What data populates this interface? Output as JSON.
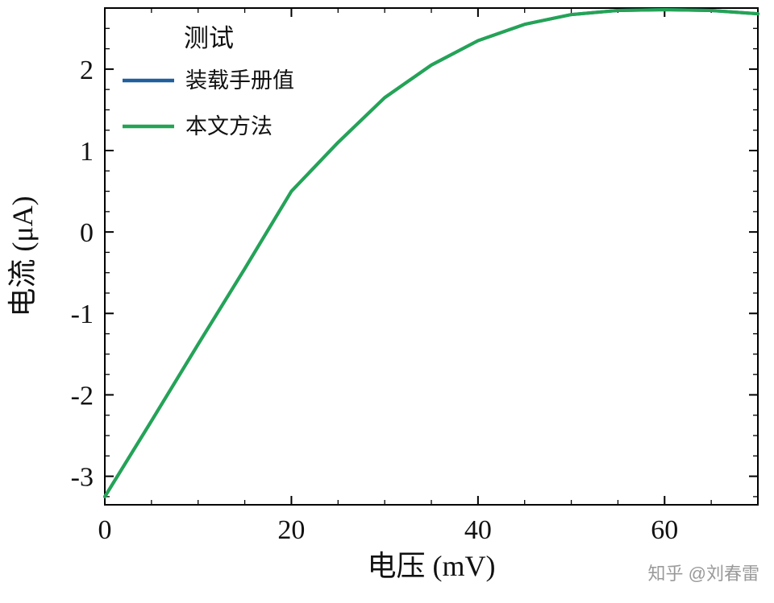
{
  "watermark": "知乎 @刘春雷",
  "chart_data": {
    "type": "line",
    "title": "",
    "legend": {
      "title": "测试",
      "position": "upper-left",
      "entries": [
        "装载手册值",
        "本文方法"
      ]
    },
    "xlabel": "电压 (mV)",
    "ylabel": "电流 (μA)",
    "xlim": [
      0,
      70
    ],
    "ylim": [
      -3.35,
      2.75
    ],
    "xticks": [
      0,
      20,
      40,
      60
    ],
    "xminor_step": 5,
    "yticks": [
      -3,
      -2,
      -1,
      0,
      1,
      2
    ],
    "yminor_step": 0.25,
    "grid": false,
    "line_width": 4,
    "frame_color": "#000000",
    "x": [
      0,
      5,
      10,
      15,
      20,
      25,
      30,
      35,
      40,
      45,
      50,
      55,
      60,
      65,
      70
    ],
    "series": [
      {
        "name": "装载手册值",
        "color": "#1f5f9e",
        "values": [
          -3.25,
          -2.32,
          -1.38,
          -0.45,
          0.5,
          1.1,
          1.65,
          2.05,
          2.35,
          2.55,
          2.67,
          2.72,
          2.73,
          2.72,
          2.68
        ]
      },
      {
        "name": "本文方法",
        "color": "#23a455",
        "values": [
          -3.25,
          -2.32,
          -1.38,
          -0.45,
          0.5,
          1.1,
          1.65,
          2.05,
          2.35,
          2.55,
          2.67,
          2.72,
          2.73,
          2.72,
          2.68
        ]
      }
    ]
  }
}
